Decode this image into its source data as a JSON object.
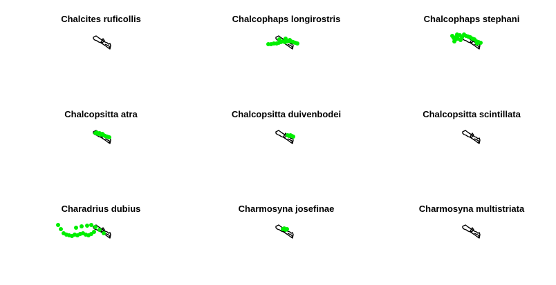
{
  "chart_data": [
    {
      "type": "scatter",
      "title": "Chalcites ruficollis",
      "point_color": "#00ee00",
      "outline_color": "#000000",
      "x": [],
      "y": []
    },
    {
      "type": "scatter",
      "title": "Chalcophaps longirostris",
      "point_color": "#00ee00",
      "outline_color": "#000000",
      "x": [
        -22,
        -18,
        -14,
        -10,
        -7,
        -4,
        -1,
        2,
        5,
        8,
        11,
        14,
        17,
        20,
        -6,
        3,
        9
      ],
      "y": [
        -2,
        -2,
        -1,
        -1,
        0,
        1,
        2,
        1,
        2,
        3,
        2,
        1,
        0,
        -1,
        5,
        6,
        4
      ]
    },
    {
      "type": "scatter",
      "title": "Chalcophaps stephani",
      "point_color": "#00ee00",
      "outline_color": "#000000",
      "x": [
        -26,
        -24,
        -22,
        -20,
        -18,
        -15,
        -12,
        -9,
        -6,
        -3,
        0,
        3,
        6,
        9,
        12,
        15,
        10,
        -23,
        -19,
        -14
      ],
      "y": [
        10,
        7,
        4,
        9,
        6,
        11,
        8,
        12,
        10,
        9,
        8,
        6,
        5,
        2,
        1,
        0,
        -1,
        2,
        12,
        4
      ]
    },
    {
      "type": "scatter",
      "title": "Chalcopsitta atra",
      "point_color": "#00ee00",
      "outline_color": "#000000",
      "x": [
        -8,
        -6,
        -4,
        -2,
        0,
        2,
        4,
        6,
        9,
        12
      ],
      "y": [
        6,
        7,
        5,
        6,
        4,
        5,
        3,
        2,
        1,
        0
      ]
    },
    {
      "type": "scatter",
      "title": "Chalcopsitta duivenbodei",
      "point_color": "#00ee00",
      "outline_color": "#000000",
      "x": [
        6,
        8,
        10,
        12,
        14
      ],
      "y": [
        3,
        2,
        3,
        2,
        1
      ]
    },
    {
      "type": "scatter",
      "title": "Chalcopsitta scintillata",
      "point_color": "#00ee00",
      "outline_color": "#000000",
      "x": [],
      "y": []
    },
    {
      "type": "scatter",
      "title": "Charadrius dubius",
      "point_color": "#00ee00",
      "outline_color": "#000000",
      "x": [
        -62,
        -58,
        -54,
        -50,
        -46,
        -42,
        -38,
        -34,
        -30,
        -26,
        -22,
        -18,
        -14,
        -10,
        -36,
        -28,
        -20,
        -14,
        -8,
        -2,
        4
      ],
      "y": [
        10,
        4,
        -2,
        -4,
        -5,
        -6,
        -4,
        -5,
        -3,
        -2,
        -4,
        -5,
        -3,
        0,
        6,
        8,
        9,
        10,
        7,
        3,
        -2
      ]
    },
    {
      "type": "scatter",
      "title": "Charmosyna josefinae",
      "point_color": "#00ee00",
      "outline_color": "#000000",
      "x": [
        -1,
        1,
        3,
        5
      ],
      "y": [
        4,
        5,
        3,
        4
      ]
    },
    {
      "type": "scatter",
      "title": "Charmosyna multistriata",
      "point_color": "#00ee00",
      "outline_color": "#000000",
      "x": [],
      "y": []
    }
  ]
}
